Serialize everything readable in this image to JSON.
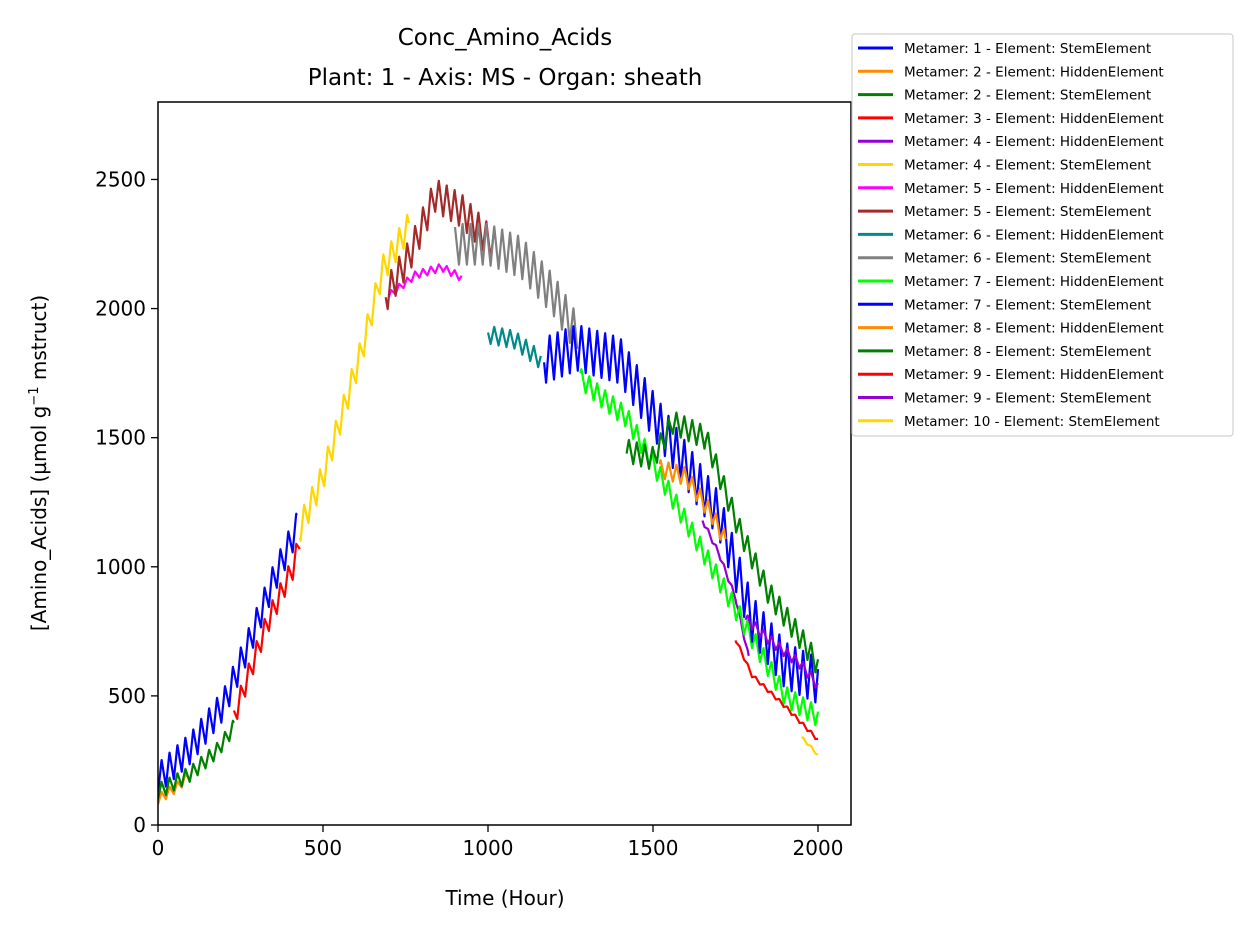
{
  "chart_data": {
    "type": "line",
    "title": "Conc_Amino_Acids",
    "subtitle": "Plant: 1 - Axis: MS - Organ: sheath",
    "xlabel": "Time (Hour)",
    "ylabel_main": "[Amino_Acids] (µmol g",
    "ylabel_sup": "−1",
    "ylabel_tail": " mstruct)",
    "xlim": [
      0,
      2100
    ],
    "ylim": [
      0,
      2800
    ],
    "x_ticks": [
      0,
      500,
      1000,
      1500,
      2000
    ],
    "y_ticks": [
      0,
      500,
      1000,
      1500,
      2000,
      2500
    ],
    "x_tick_labels": [
      "0",
      "500",
      "1000",
      "1500",
      "2000"
    ],
    "y_tick_labels": [
      "0",
      "500",
      "1000",
      "1500",
      "2000",
      "2500"
    ],
    "grid": false,
    "legend_placement": "outside-top-right",
    "series": [
      {
        "name": "Metamer: 1 - Element: StemElement",
        "color": "#0000ff",
        "amp": 120,
        "points": [
          [
            0,
            180
          ],
          [
            100,
            300
          ],
          [
            200,
            470
          ],
          [
            280,
            720
          ],
          [
            350,
            950
          ],
          [
            420,
            1150
          ]
        ]
      },
      {
        "name": "Metamer: 2 - Element: HiddenElement",
        "color": "#ff8c00",
        "amp": 40,
        "points": [
          [
            0,
            100
          ],
          [
            60,
            150
          ],
          [
            100,
            200
          ]
        ]
      },
      {
        "name": "Metamer: 2 - Element: StemElement",
        "color": "#008000",
        "amp": 60,
        "points": [
          [
            0,
            130
          ],
          [
            100,
            200
          ],
          [
            180,
            290
          ],
          [
            230,
            380
          ]
        ]
      },
      {
        "name": "Metamer: 3 - Element: HiddenElement",
        "color": "#ff0000",
        "amp": 90,
        "points": [
          [
            230,
            420
          ],
          [
            280,
            600
          ],
          [
            330,
            780
          ],
          [
            410,
            1000
          ],
          [
            430,
            1100
          ]
        ]
      },
      {
        "name": "Metamer: 4 - Element: HiddenElement",
        "color": "#9400d3",
        "amp": 20,
        "points": [
          [
            1650,
            1180
          ],
          [
            1700,
            1050
          ],
          [
            1750,
            880
          ],
          [
            1790,
            650
          ]
        ]
      },
      {
        "name": "Metamer: 4 - Element: StemElement",
        "color": "#ffd700",
        "amp": 110,
        "points": [
          [
            430,
            1150
          ],
          [
            500,
            1350
          ],
          [
            560,
            1600
          ],
          [
            620,
            1850
          ],
          [
            680,
            2150
          ],
          [
            760,
            2320
          ]
        ]
      },
      {
        "name": "Metamer: 5 - Element: HiddenElement",
        "color": "#ff00ff",
        "amp": 30,
        "points": [
          [
            700,
            2050
          ],
          [
            780,
            2130
          ],
          [
            860,
            2160
          ],
          [
            920,
            2120
          ]
        ]
      },
      {
        "name": "Metamer: 5 - Element: StemElement",
        "color": "#a52a2a",
        "amp": 130,
        "points": [
          [
            690,
            2050
          ],
          [
            760,
            2200
          ],
          [
            840,
            2440
          ],
          [
            920,
            2380
          ],
          [
            1020,
            2240
          ]
        ]
      },
      {
        "name": "Metamer: 6 - Element: HiddenElement",
        "color": "#008b8b",
        "amp": 70,
        "points": [
          [
            1000,
            1900
          ],
          [
            1080,
            1880
          ],
          [
            1160,
            1800
          ]
        ]
      },
      {
        "name": "Metamer: 6 - Element: StemElement",
        "color": "#808080",
        "amp": 160,
        "points": [
          [
            900,
            2250
          ],
          [
            1000,
            2250
          ],
          [
            1100,
            2200
          ],
          [
            1200,
            2050
          ],
          [
            1270,
            1900
          ]
        ]
      },
      {
        "name": "Metamer: 7 - Element: HiddenElement",
        "color": "#00ff00",
        "amp": 80,
        "points": [
          [
            1280,
            1730
          ],
          [
            1350,
            1650
          ],
          [
            1420,
            1580
          ],
          [
            1900,
            500
          ],
          [
            2000,
            420
          ]
        ]
      },
      {
        "name": "Metamer: 7 - Element: StemElement",
        "color": "#0000ff",
        "amp": 180,
        "points": [
          [
            1170,
            1800
          ],
          [
            1270,
            1850
          ],
          [
            1400,
            1800
          ],
          [
            1520,
            1550
          ],
          [
            1700,
            1200
          ],
          [
            1800,
            800
          ],
          [
            1900,
            620
          ],
          [
            2000,
            560
          ]
        ]
      },
      {
        "name": "Metamer: 8 - Element: HiddenElement",
        "color": "#ff8c00",
        "amp": 70,
        "points": [
          [
            1520,
            1380
          ],
          [
            1600,
            1350
          ],
          [
            1680,
            1200
          ],
          [
            1720,
            1100
          ]
        ]
      },
      {
        "name": "Metamer: 8 - Element: StemElement",
        "color": "#008000",
        "amp": 90,
        "points": [
          [
            1420,
            1450
          ],
          [
            1500,
            1420
          ],
          [
            1560,
            1560
          ],
          [
            1660,
            1500
          ],
          [
            1760,
            1150
          ],
          [
            1850,
            900
          ],
          [
            1950,
            720
          ],
          [
            2000,
            620
          ]
        ]
      },
      {
        "name": "Metamer: 9 - Element: HiddenElement",
        "color": "#ff0000",
        "amp": 15,
        "points": [
          [
            1750,
            720
          ],
          [
            1800,
            580
          ],
          [
            1900,
            460
          ],
          [
            2000,
            330
          ]
        ]
      },
      {
        "name": "Metamer: 9 - Element: StemElement",
        "color": "#9400d3",
        "amp": 40,
        "points": [
          [
            1780,
            800
          ],
          [
            1850,
            720
          ],
          [
            1950,
            620
          ],
          [
            2000,
            540
          ]
        ]
      },
      {
        "name": "Metamer: 10 - Element: StemElement",
        "color": "#ffd700",
        "amp": 10,
        "points": [
          [
            1950,
            340
          ],
          [
            1980,
            300
          ],
          [
            2000,
            270
          ]
        ]
      }
    ]
  }
}
